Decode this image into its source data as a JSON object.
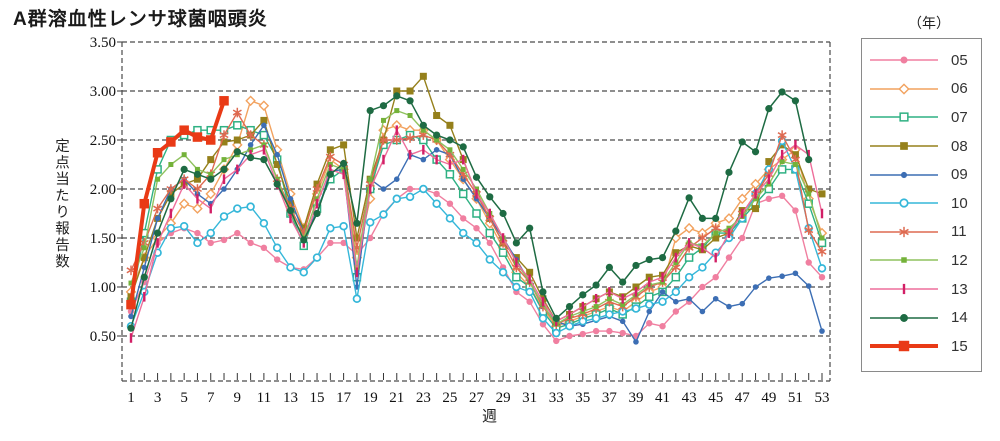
{
  "title": "A群溶血性レンサ球菌咽頭炎",
  "y_axis": {
    "label": "定点当たり報告数",
    "ticks": [
      "3.50",
      "3.00",
      "2.50",
      "2.00",
      "1.50",
      "1.00",
      "0.50"
    ]
  },
  "x_axis": {
    "label": "週",
    "labeled_weeks": [
      1,
      3,
      5,
      7,
      9,
      11,
      13,
      15,
      17,
      19,
      21,
      23,
      25,
      27,
      29,
      31,
      33,
      35,
      37,
      39,
      41,
      43,
      45,
      47,
      49,
      51,
      53
    ]
  },
  "legend": {
    "unit_label": "（年）"
  },
  "chart_data": {
    "type": "line",
    "title": "A群溶血性レンサ球菌咽頭炎",
    "xlabel": "週",
    "ylabel": "定点当たり報告数",
    "x_start_week": 1,
    "x_end_week": 53,
    "ylim": [
      0.04,
      3.5
    ],
    "grid": "horizontal dashed every 0.50",
    "legend_position": "right",
    "series": [
      {
        "name": "05",
        "color": "#f07fa0",
        "marker": "circle",
        "marker_size": 6.4,
        "line_width": 1.4,
        "values": [
          0.75,
          1.05,
          1.45,
          1.55,
          1.6,
          1.55,
          1.45,
          1.48,
          1.55,
          1.45,
          1.4,
          1.28,
          1.2,
          1.18,
          1.3,
          1.45,
          1.45,
          1.33,
          1.5,
          1.75,
          1.9,
          2.0,
          2.0,
          1.95,
          1.85,
          1.7,
          1.6,
          1.45,
          1.2,
          0.95,
          0.85,
          0.62,
          0.45,
          0.5,
          0.52,
          0.55,
          0.55,
          0.53,
          0.5,
          0.63,
          0.6,
          0.75,
          0.85,
          1.0,
          1.1,
          1.3,
          1.5,
          1.85,
          1.9,
          1.93,
          1.78,
          1.25,
          1.1
        ]
      },
      {
        "name": "06",
        "color": "#f2a25f",
        "marker": "diamond-open",
        "marker_size": 7,
        "line_width": 1.4,
        "values": [
          0.95,
          1.3,
          1.5,
          1.65,
          1.85,
          1.8,
          1.95,
          2.2,
          2.45,
          2.9,
          2.85,
          2.4,
          1.95,
          1.6,
          1.95,
          2.3,
          2.2,
          1.3,
          1.9,
          2.6,
          2.65,
          2.6,
          2.6,
          2.5,
          2.3,
          2.1,
          1.9,
          1.65,
          1.4,
          1.15,
          1.0,
          0.78,
          0.6,
          0.65,
          0.7,
          0.75,
          0.8,
          0.75,
          0.85,
          0.95,
          1.0,
          1.5,
          1.6,
          1.55,
          1.65,
          1.7,
          1.9,
          2.05,
          2.2,
          2.3,
          2.4,
          1.9,
          1.55
        ]
      },
      {
        "name": "07",
        "color": "#2fb183",
        "marker": "square-open",
        "marker_size": 7,
        "line_width": 1.4,
        "values": [
          0.85,
          1.55,
          2.2,
          2.5,
          2.55,
          2.6,
          2.6,
          2.6,
          2.65,
          2.6,
          2.55,
          2.3,
          1.75,
          1.42,
          1.8,
          2.1,
          2.2,
          1.1,
          2.0,
          2.45,
          2.5,
          2.55,
          2.5,
          2.3,
          2.15,
          1.95,
          1.75,
          1.55,
          1.35,
          1.1,
          1.0,
          0.75,
          0.58,
          0.62,
          0.68,
          0.72,
          0.78,
          0.72,
          0.8,
          0.9,
          0.95,
          1.1,
          1.3,
          1.4,
          1.55,
          1.55,
          1.7,
          1.85,
          2.0,
          2.2,
          2.2,
          1.85,
          1.45
        ]
      },
      {
        "name": "08",
        "color": "#95801b",
        "marker": "square",
        "marker_size": 7,
        "line_width": 1.4,
        "values": [
          0.9,
          1.3,
          1.7,
          1.95,
          2.05,
          2.1,
          2.3,
          2.48,
          2.5,
          2.55,
          2.7,
          2.25,
          1.85,
          1.6,
          2.05,
          2.4,
          2.45,
          1.5,
          2.1,
          2.5,
          3.0,
          3.0,
          3.15,
          2.75,
          2.65,
          2.3,
          1.95,
          1.7,
          1.45,
          1.3,
          1.15,
          0.88,
          0.65,
          0.72,
          0.8,
          0.88,
          0.95,
          0.9,
          1.0,
          1.1,
          1.12,
          1.35,
          1.42,
          1.38,
          1.5,
          1.55,
          1.78,
          1.8,
          2.28,
          2.45,
          2.35,
          2.0,
          1.95
        ]
      },
      {
        "name": "09",
        "color": "#3c6eb4",
        "marker": "circle",
        "marker_size": 5.6,
        "line_width": 1.4,
        "values": [
          0.7,
          1.2,
          1.7,
          2.0,
          2.1,
          1.95,
          1.85,
          2.0,
          2.2,
          2.45,
          2.65,
          2.35,
          1.9,
          1.55,
          1.75,
          2.18,
          2.2,
          1.0,
          2.1,
          2.0,
          2.1,
          2.35,
          2.3,
          2.4,
          2.35,
          2.1,
          1.9,
          1.7,
          1.5,
          1.28,
          1.05,
          0.8,
          0.65,
          0.6,
          0.62,
          0.66,
          0.7,
          0.65,
          0.44,
          0.75,
          0.95,
          0.85,
          0.88,
          0.75,
          0.88,
          0.8,
          0.83,
          1.0,
          1.09,
          1.11,
          1.14,
          1.01,
          0.55
        ]
      },
      {
        "name": "10",
        "color": "#35b7d9",
        "marker": "circle-open",
        "marker_size": 6.8,
        "line_width": 1.4,
        "values": [
          0.6,
          0.95,
          1.35,
          1.6,
          1.62,
          1.45,
          1.55,
          1.72,
          1.8,
          1.82,
          1.65,
          1.4,
          1.2,
          1.15,
          1.3,
          1.6,
          1.62,
          0.88,
          1.66,
          1.74,
          1.9,
          1.92,
          2.0,
          1.85,
          1.7,
          1.55,
          1.45,
          1.28,
          1.15,
          1.0,
          0.95,
          0.68,
          0.53,
          0.6,
          0.65,
          0.68,
          0.72,
          0.75,
          0.78,
          0.82,
          0.85,
          0.95,
          1.1,
          1.2,
          1.35,
          1.5,
          1.7,
          1.95,
          2.2,
          2.49,
          2.2,
          1.6,
          1.19
        ]
      },
      {
        "name": "11",
        "color": "#de6a51",
        "marker": "asterisk",
        "marker_size": 7,
        "line_width": 1.4,
        "values": [
          1.17,
          1.45,
          1.8,
          2.0,
          2.1,
          2.0,
          2.15,
          2.55,
          2.78,
          2.55,
          2.45,
          2.1,
          1.8,
          1.55,
          2.0,
          2.33,
          2.25,
          1.4,
          2.05,
          2.5,
          2.5,
          2.52,
          2.55,
          2.5,
          2.35,
          2.15,
          1.95,
          1.7,
          1.45,
          1.2,
          1.05,
          0.8,
          0.62,
          0.68,
          0.72,
          0.78,
          0.85,
          0.8,
          0.9,
          1.0,
          1.05,
          1.2,
          1.4,
          1.5,
          1.6,
          1.55,
          1.75,
          1.95,
          2.15,
          2.55,
          2.3,
          1.58,
          1.36
        ]
      },
      {
        "name": "12",
        "color": "#8fc25e",
        "marker_color": "#74b23a",
        "marker": "square",
        "marker_size": 5,
        "line_width": 1.4,
        "values": [
          1.04,
          1.4,
          2.1,
          2.25,
          2.35,
          2.2,
          2.15,
          2.3,
          2.35,
          2.4,
          2.45,
          2.1,
          1.75,
          1.5,
          1.9,
          2.25,
          2.2,
          1.2,
          2.1,
          2.7,
          2.8,
          2.75,
          2.6,
          2.5,
          2.4,
          2.2,
          2.0,
          1.75,
          1.5,
          1.25,
          1.05,
          0.82,
          0.62,
          0.7,
          0.75,
          0.8,
          0.88,
          0.82,
          0.92,
          1.02,
          1.05,
          1.25,
          1.45,
          1.42,
          1.55,
          1.6,
          1.72,
          1.9,
          2.05,
          2.28,
          2.25,
          1.95,
          1.5
        ]
      },
      {
        "name": "13",
        "color": "#ee6e9b",
        "marker_color": "#d21f66",
        "marker": "vtick",
        "marker_size": 6,
        "line_width": 1.4,
        "values": [
          0.48,
          0.9,
          1.45,
          1.75,
          2.05,
          1.9,
          1.8,
          2.1,
          2.2,
          2.35,
          2.4,
          2.05,
          1.7,
          1.45,
          1.85,
          2.2,
          2.15,
          1.15,
          2.0,
          2.3,
          2.6,
          2.35,
          2.4,
          2.3,
          2.25,
          2.3,
          1.95,
          1.75,
          1.5,
          1.25,
          1.08,
          0.85,
          0.65,
          0.72,
          0.8,
          0.88,
          0.95,
          0.88,
          0.95,
          1.05,
          1.1,
          1.3,
          1.45,
          1.4,
          1.3,
          1.55,
          1.75,
          1.95,
          2.1,
          2.35,
          2.45,
          2.35,
          1.75
        ]
      },
      {
        "name": "14",
        "color": "#1e6b43",
        "marker": "circle",
        "marker_size": 7.2,
        "line_width": 1.5,
        "values": [
          0.58,
          1.1,
          1.55,
          1.9,
          2.2,
          2.15,
          2.1,
          2.2,
          2.38,
          2.32,
          2.3,
          2.05,
          1.78,
          1.48,
          1.75,
          2.15,
          2.26,
          1.65,
          2.8,
          2.85,
          2.95,
          2.9,
          2.65,
          2.55,
          2.5,
          2.43,
          2.12,
          1.92,
          1.75,
          1.45,
          1.6,
          0.95,
          0.68,
          0.8,
          0.92,
          1.02,
          1.2,
          1.05,
          1.22,
          1.28,
          1.3,
          1.57,
          1.91,
          1.7,
          1.7,
          2.17,
          2.48,
          2.38,
          2.82,
          2.99,
          2.9,
          2.3,
          null
        ]
      },
      {
        "name": "15",
        "color": "#e93a16",
        "marker": "square",
        "marker_size": 9.5,
        "line_width": 4,
        "values": [
          0.82,
          1.85,
          2.37,
          2.48,
          2.6,
          2.53,
          2.5,
          2.9,
          null,
          null,
          null,
          null,
          null,
          null,
          null,
          null,
          null,
          null,
          null,
          null,
          null,
          null,
          null,
          null,
          null,
          null,
          null,
          null,
          null,
          null,
          null,
          null,
          null,
          null,
          null,
          null,
          null,
          null,
          null,
          null,
          null,
          null,
          null,
          null,
          null,
          null,
          null,
          null,
          null,
          null,
          null,
          null,
          null
        ]
      }
    ]
  }
}
